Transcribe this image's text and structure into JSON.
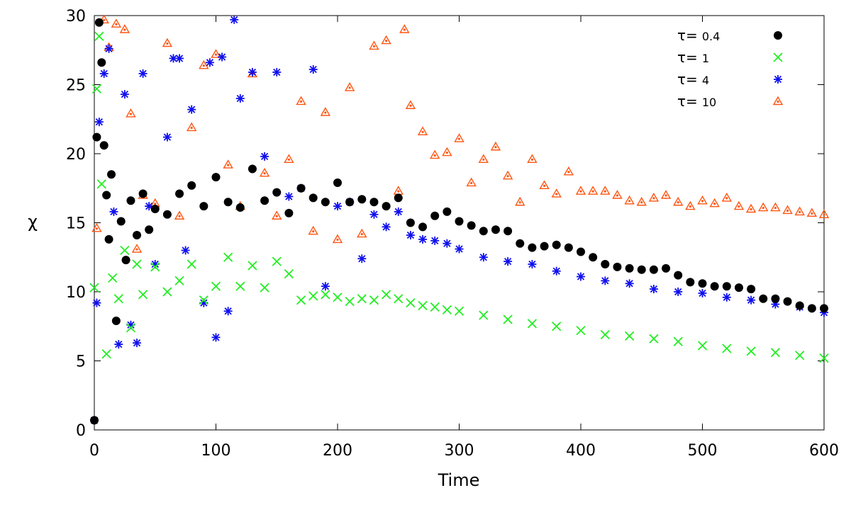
{
  "chart_data": {
    "type": "scatter",
    "title": "",
    "xlabel": "Time",
    "ylabel": "χ",
    "xlim": [
      0,
      600
    ],
    "ylim": [
      0,
      30
    ],
    "xticks": [
      0,
      100,
      200,
      300,
      400,
      500,
      600
    ],
    "yticks": [
      0,
      5,
      10,
      15,
      20,
      25,
      30
    ],
    "grid": false,
    "legend_position": "top-right",
    "series": [
      {
        "name": "τ= 0.4",
        "symbol": "τ=",
        "value": "0.4",
        "marker": "circle",
        "color": "#000000",
        "x": [
          0,
          2,
          4,
          6,
          8,
          10,
          12,
          14,
          18,
          22,
          26,
          30,
          35,
          40,
          45,
          50,
          60,
          70,
          80,
          90,
          100,
          110,
          120,
          130,
          140,
          150,
          160,
          170,
          180,
          190,
          200,
          210,
          220,
          230,
          240,
          250,
          260,
          270,
          280,
          290,
          300,
          310,
          320,
          330,
          340,
          350,
          360,
          370,
          380,
          390,
          400,
          410,
          420,
          430,
          440,
          450,
          460,
          470,
          480,
          490,
          500,
          510,
          520,
          530,
          540,
          550,
          560,
          570,
          580,
          590,
          600
        ],
        "y": [
          0.7,
          21.2,
          29.5,
          26.6,
          20.6,
          17.0,
          13.8,
          18.5,
          7.9,
          15.1,
          12.3,
          16.6,
          14.1,
          17.1,
          14.5,
          16.0,
          15.6,
          17.1,
          17.7,
          16.2,
          18.3,
          16.5,
          16.1,
          18.9,
          16.6,
          17.2,
          15.7,
          17.5,
          16.8,
          16.5,
          17.9,
          16.5,
          16.7,
          16.5,
          16.2,
          16.8,
          15.0,
          14.7,
          15.5,
          15.8,
          15.1,
          14.8,
          14.4,
          14.5,
          14.4,
          13.5,
          13.2,
          13.3,
          13.4,
          13.2,
          12.9,
          12.5,
          12.0,
          11.8,
          11.7,
          11.6,
          11.6,
          11.7,
          11.2,
          10.7,
          10.6,
          10.4,
          10.4,
          10.3,
          10.2,
          9.5,
          9.5,
          9.3,
          9.0,
          8.8,
          8.8
        ]
      },
      {
        "name": "τ= 1",
        "symbol": "τ=",
        "value": "1",
        "marker": "cross",
        "color": "#22ee22",
        "x": [
          0,
          2,
          4,
          6,
          10,
          15,
          20,
          25,
          30,
          35,
          40,
          50,
          60,
          70,
          80,
          90,
          100,
          110,
          120,
          130,
          140,
          150,
          160,
          170,
          180,
          190,
          200,
          210,
          220,
          230,
          240,
          250,
          260,
          270,
          280,
          290,
          300,
          320,
          340,
          360,
          380,
          400,
          420,
          440,
          460,
          480,
          500,
          520,
          540,
          560,
          580,
          600
        ],
        "y": [
          10.3,
          24.7,
          28.5,
          17.8,
          5.5,
          11.0,
          9.5,
          13.0,
          7.4,
          12.0,
          9.8,
          11.8,
          10.0,
          10.8,
          12.0,
          9.4,
          10.4,
          12.5,
          10.4,
          11.9,
          10.3,
          12.2,
          11.3,
          9.4,
          9.7,
          9.8,
          9.6,
          9.3,
          9.5,
          9.4,
          9.8,
          9.5,
          9.2,
          9.0,
          8.9,
          8.7,
          8.6,
          8.3,
          8.0,
          7.7,
          7.5,
          7.2,
          6.9,
          6.8,
          6.6,
          6.4,
          6.1,
          5.9,
          5.7,
          5.6,
          5.4,
          5.2
        ]
      },
      {
        "name": "τ= 4",
        "symbol": "τ=",
        "value": "4",
        "marker": "star",
        "color": "#1010ee",
        "x": [
          0,
          2,
          4,
          8,
          12,
          16,
          20,
          25,
          30,
          35,
          40,
          45,
          50,
          60,
          65,
          70,
          75,
          80,
          90,
          95,
          100,
          105,
          110,
          115,
          120,
          130,
          140,
          150,
          160,
          170,
          180,
          190,
          200,
          210,
          220,
          230,
          240,
          250,
          260,
          270,
          280,
          290,
          300,
          320,
          340,
          360,
          380,
          400,
          420,
          440,
          460,
          480,
          500,
          520,
          540,
          560,
          580,
          600
        ],
        "y": [
          0.7,
          9.2,
          22.3,
          25.8,
          27.6,
          15.8,
          6.2,
          24.3,
          7.6,
          6.3,
          25.8,
          16.2,
          12.0,
          21.2,
          26.9,
          26.9,
          13.0,
          23.2,
          9.2,
          26.6,
          6.7,
          27.0,
          8.6,
          29.7,
          24.0,
          25.9,
          19.8,
          25.9,
          16.9,
          17.5,
          26.1,
          10.4,
          16.2,
          16.5,
          12.4,
          15.6,
          14.7,
          15.8,
          14.1,
          13.8,
          13.7,
          13.5,
          13.1,
          12.5,
          12.2,
          12.0,
          11.5,
          11.1,
          10.8,
          10.6,
          10.2,
          10.0,
          9.9,
          9.6,
          9.4,
          9.1,
          8.9,
          8.5
        ]
      },
      {
        "name": "τ= 10",
        "symbol": "τ=",
        "value": "10",
        "marker": "triangle",
        "color": "#ff5511",
        "x": [
          2,
          8,
          12,
          18,
          25,
          30,
          35,
          40,
          50,
          60,
          70,
          80,
          90,
          100,
          110,
          120,
          130,
          140,
          150,
          160,
          170,
          180,
          190,
          200,
          210,
          220,
          230,
          240,
          250,
          255,
          260,
          270,
          280,
          290,
          300,
          310,
          320,
          330,
          340,
          350,
          360,
          370,
          380,
          390,
          400,
          410,
          420,
          430,
          440,
          450,
          460,
          470,
          480,
          490,
          500,
          510,
          520,
          530,
          540,
          550,
          560,
          570,
          580,
          590,
          600
        ],
        "y": [
          14.6,
          29.7,
          27.7,
          29.4,
          29.0,
          22.9,
          13.1,
          17.0,
          16.4,
          28.0,
          15.5,
          21.9,
          26.4,
          27.2,
          19.2,
          16.2,
          25.8,
          18.6,
          15.5,
          19.6,
          23.8,
          14.4,
          23.0,
          13.8,
          24.8,
          14.2,
          27.8,
          28.2,
          17.3,
          29.0,
          23.5,
          21.6,
          19.9,
          20.1,
          21.1,
          17.9,
          19.6,
          20.5,
          18.4,
          16.5,
          19.6,
          17.7,
          17.1,
          18.7,
          17.3,
          17.3,
          17.3,
          17.0,
          16.6,
          16.5,
          16.8,
          17.0,
          16.5,
          16.2,
          16.6,
          16.4,
          16.8,
          16.2,
          16.0,
          16.1,
          16.1,
          15.9,
          15.8,
          15.7,
          15.6
        ]
      }
    ]
  }
}
